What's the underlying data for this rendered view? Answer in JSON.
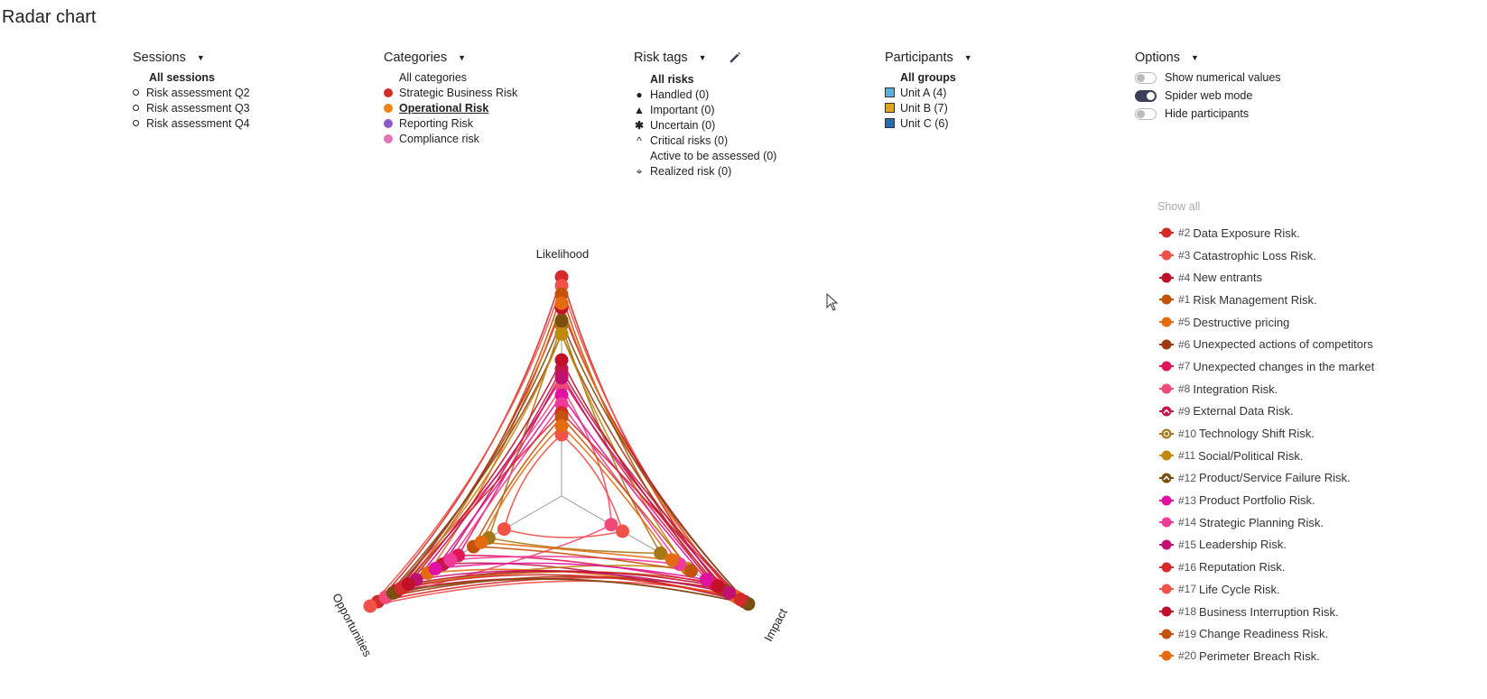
{
  "page": {
    "title": "Radar chart"
  },
  "sessions": {
    "header": "Sessions",
    "items": [
      "All sessions",
      "Risk assessment Q2",
      "Risk assessment Q3",
      "Risk assessment Q4"
    ]
  },
  "categories": {
    "header": "Categories",
    "items": [
      {
        "label": "All categories",
        "color": ""
      },
      {
        "label": "Strategic Business Risk",
        "color": "#d42a2a"
      },
      {
        "label": "Operational Risk",
        "color": "#f08218"
      },
      {
        "label": "Reporting Risk",
        "color": "#8b5cc7"
      },
      {
        "label": "Compliance risk",
        "color": "#e672b8"
      }
    ]
  },
  "risk_tags": {
    "header": "Risk tags",
    "items": [
      {
        "label": "All risks",
        "icon": "none"
      },
      {
        "label": "Handled (0)",
        "icon": "filled-circle-icon"
      },
      {
        "label": "Important (0)",
        "icon": "triangle-icon"
      },
      {
        "label": "Uncertain (0)",
        "icon": "asterisk-icon"
      },
      {
        "label": "Critical risks (0)",
        "icon": "caret-up-icon"
      },
      {
        "label": "Active to be assessed (0)",
        "icon": "none"
      },
      {
        "label": "Realized risk (0)",
        "icon": "crosshair-icon"
      }
    ]
  },
  "participants": {
    "header": "Participants",
    "items": [
      {
        "label": "All groups",
        "color": ""
      },
      {
        "label": "Unit A (4)",
        "color": "#5aaee0"
      },
      {
        "label": "Unit B (7)",
        "color": "#e8a418"
      },
      {
        "label": "Unit C (6)",
        "color": "#1f6db5"
      }
    ]
  },
  "options": {
    "header": "Options",
    "items": [
      {
        "label": "Show numerical values",
        "state": "off"
      },
      {
        "label": "Spider web mode",
        "state": "on"
      },
      {
        "label": "Hide participants",
        "state": "off"
      }
    ]
  },
  "legend": {
    "show_all": "Show all",
    "items": [
      {
        "num": "#2",
        "label": "Data Exposure Risk.",
        "color": "#d42a2a",
        "marker": "circle"
      },
      {
        "num": "#3",
        "label": "Catastrophic Loss Risk.",
        "color": "#f0524a",
        "marker": "circle"
      },
      {
        "num": "#4",
        "label": "New entrants",
        "color": "#c0102a",
        "marker": "circle"
      },
      {
        "num": "#1",
        "label": "Risk Management Risk.",
        "color": "#c2520c",
        "marker": "circle"
      },
      {
        "num": "#5",
        "label": "Destructive pricing",
        "color": "#e66a10",
        "marker": "circle"
      },
      {
        "num": "#6",
        "label": "Unexpected actions of competitors",
        "color": "#a03a12",
        "marker": "circle"
      },
      {
        "num": "#7",
        "label": "Unexpected changes in the market",
        "color": "#e0185a",
        "marker": "circle"
      },
      {
        "num": "#8",
        "label": "Integration Risk.",
        "color": "#f04a78",
        "marker": "circle"
      },
      {
        "num": "#9",
        "label": "External Data Risk.",
        "color": "#c01848",
        "marker": "caret"
      },
      {
        "num": "#10",
        "label": "Technology Shift Risk.",
        "color": "#a87818",
        "marker": "crosshair"
      },
      {
        "num": "#11",
        "label": "Social/Political Risk.",
        "color": "#c08a10",
        "marker": "circle"
      },
      {
        "num": "#12",
        "label": "Product/Service Failure Risk.",
        "color": "#7a5010",
        "marker": "caret"
      },
      {
        "num": "#13",
        "label": "Product Portfolio Risk.",
        "color": "#e010a0",
        "marker": "circle"
      },
      {
        "num": "#14",
        "label": "Strategic Planning Risk.",
        "color": "#f03a9a",
        "marker": "circle"
      },
      {
        "num": "#15",
        "label": "Leadership Risk.",
        "color": "#c01070",
        "marker": "circle"
      },
      {
        "num": "#16",
        "label": "Reputation Risk.",
        "color": "#d42a2a",
        "marker": "circle"
      },
      {
        "num": "#17",
        "label": "Life Cycle Risk.",
        "color": "#f0524a",
        "marker": "circle"
      },
      {
        "num": "#18",
        "label": "Business Interruption Risk.",
        "color": "#c0102a",
        "marker": "circle"
      },
      {
        "num": "#19",
        "label": "Change Readiness Risk.",
        "color": "#c2520c",
        "marker": "circle"
      },
      {
        "num": "#20",
        "label": "Perimeter Breach Risk.",
        "color": "#e66a10",
        "marker": "circle"
      }
    ]
  },
  "chart_data": {
    "type": "radar",
    "title": "Radar chart",
    "axes": [
      "Likelihood",
      "Impact",
      "Opportunities"
    ],
    "range": [
      0,
      5
    ],
    "mode": "spider web",
    "series": [
      {
        "name": "#2",
        "values": [
          5.0,
          4.2,
          4.8
        ],
        "color": "#d42a2a"
      },
      {
        "name": "#3",
        "values": [
          4.8,
          4.5,
          5.0
        ],
        "color": "#f0524a"
      },
      {
        "name": "#4",
        "values": [
          4.3,
          4.9,
          4.3
        ],
        "color": "#c0102a"
      },
      {
        "name": "#1",
        "values": [
          4.6,
          3.9,
          4.1
        ],
        "color": "#c2520c"
      },
      {
        "name": "#5",
        "values": [
          4.4,
          4.6,
          3.5
        ],
        "color": "#e66a10"
      },
      {
        "name": "#6",
        "values": [
          3.7,
          4.3,
          4.6
        ],
        "color": "#a03a12"
      },
      {
        "name": "#7",
        "values": [
          2.8,
          4.0,
          2.7
        ],
        "color": "#e0185a"
      },
      {
        "name": "#8",
        "values": [
          2.5,
          1.3,
          4.6
        ],
        "color": "#f04a78"
      },
      {
        "name": "#9",
        "values": [
          2.9,
          4.8,
          3.1
        ],
        "color": "#c01848"
      },
      {
        "name": "#10",
        "values": [
          3.9,
          2.6,
          1.9
        ],
        "color": "#a87818"
      },
      {
        "name": "#11",
        "values": [
          3.7,
          3.3,
          4.2
        ],
        "color": "#c08a10"
      },
      {
        "name": "#12",
        "values": [
          4.0,
          4.9,
          4.4
        ],
        "color": "#7a5010"
      },
      {
        "name": "#13",
        "values": [
          2.3,
          3.8,
          3.3
        ],
        "color": "#e010a0"
      },
      {
        "name": "#14",
        "values": [
          2.1,
          3.1,
          2.9
        ],
        "color": "#f03a9a"
      },
      {
        "name": "#15",
        "values": [
          2.7,
          4.4,
          3.8
        ],
        "color": "#c01070"
      },
      {
        "name": "#16",
        "values": [
          1.9,
          4.7,
          4.2
        ],
        "color": "#d42a2a"
      },
      {
        "name": "#17",
        "values": [
          1.4,
          1.6,
          1.5
        ],
        "color": "#f0524a"
      },
      {
        "name": "#18",
        "values": [
          3.1,
          4.1,
          4.0
        ],
        "color": "#c0102a"
      },
      {
        "name": "#19",
        "values": [
          1.8,
          3.4,
          2.3
        ],
        "color": "#c2520c"
      },
      {
        "name": "#20",
        "values": [
          1.6,
          2.9,
          2.1
        ],
        "color": "#e66a10"
      }
    ]
  }
}
